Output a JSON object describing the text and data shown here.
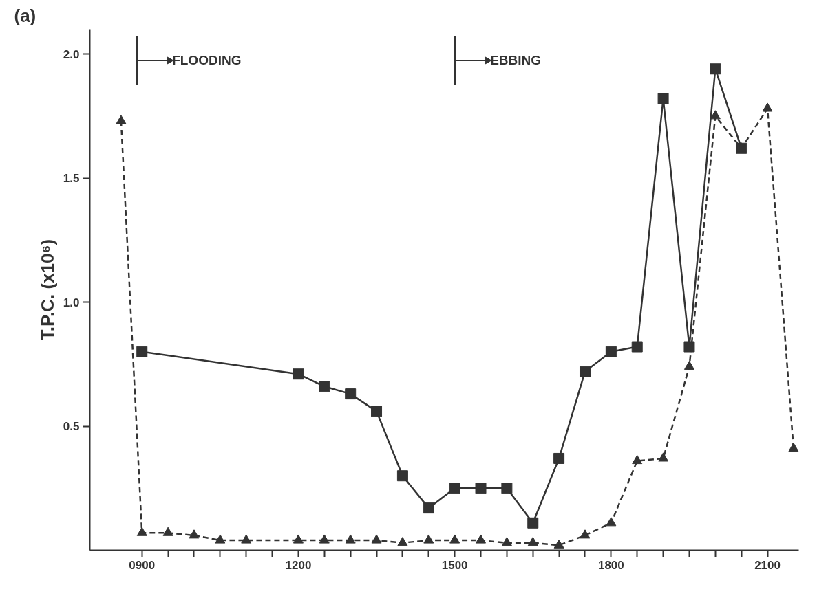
{
  "chart_data": {
    "type": "line",
    "ylabel": "T.P.C. (x10⁶)",
    "annotations": [
      "(a)"
    ],
    "ref_lines": [
      {
        "axis": "x",
        "value": 890,
        "label": "FLOODING"
      },
      {
        "axis": "x",
        "value": 1500,
        "label": "EBBING"
      }
    ],
    "xlim": [
      800,
      2160
    ],
    "ylim": [
      0,
      2.1
    ],
    "xticks": [
      {
        "value": 900,
        "label": "0900"
      },
      {
        "value": 950,
        "label": null
      },
      {
        "value": 1000,
        "label": null
      },
      {
        "value": 1050,
        "label": null
      },
      {
        "value": 1100,
        "label": null
      },
      {
        "value": 1150,
        "label": null
      },
      1200,
      {
        "value": 1250,
        "label": null
      },
      {
        "value": 1300,
        "label": null
      },
      {
        "value": 1350,
        "label": null
      },
      {
        "value": 1400,
        "label": null
      },
      {
        "value": 1450,
        "label": null
      },
      1500,
      {
        "value": 1550,
        "label": null
      },
      {
        "value": 1600,
        "label": null
      },
      {
        "value": 1650,
        "label": null
      },
      {
        "value": 1700,
        "label": null
      },
      {
        "value": 1750,
        "label": null
      },
      1800,
      {
        "value": 1850,
        "label": null
      },
      {
        "value": 1900,
        "label": null
      },
      {
        "value": 1950,
        "label": null
      },
      {
        "value": 2000,
        "label": null
      },
      {
        "value": 2050,
        "label": null
      },
      2100
    ],
    "yticks": [
      0.5,
      {
        "value": 1.0,
        "label": "1.0"
      },
      1.5,
      {
        "value": 2.0,
        "label": "2.0"
      }
    ],
    "series": [
      {
        "color": "#333333",
        "marker": "square",
        "line_style": "solid",
        "x": [
          900,
          1200,
          1250,
          1300,
          1350,
          1400,
          1450,
          1500,
          1550,
          1600,
          1650,
          1700,
          1750,
          1800,
          1850,
          1900,
          1950,
          2000,
          2050
        ],
        "values": [
          0.8,
          0.71,
          0.66,
          0.63,
          0.56,
          0.3,
          0.17,
          0.25,
          0.25,
          0.25,
          0.11,
          0.37,
          0.72,
          0.8,
          0.82,
          1.82,
          0.82,
          1.94,
          1.62
        ]
      },
      {
        "color": "#333333",
        "marker": "triangle",
        "line_style": "dashed",
        "x": [
          860,
          900,
          950,
          1000,
          1050,
          1100,
          1200,
          1250,
          1300,
          1350,
          1400,
          1450,
          1500,
          1550,
          1600,
          1650,
          1700,
          1750,
          1800,
          1850,
          1900,
          1950,
          2000,
          2050,
          2100,
          2150
        ],
        "values": [
          1.73,
          0.07,
          0.07,
          0.06,
          0.04,
          0.04,
          0.04,
          0.04,
          0.04,
          0.04,
          0.03,
          0.04,
          0.04,
          0.04,
          0.03,
          0.03,
          0.02,
          0.06,
          0.11,
          0.36,
          0.37,
          0.74,
          1.75,
          1.62,
          1.78,
          0.41
        ]
      }
    ]
  }
}
